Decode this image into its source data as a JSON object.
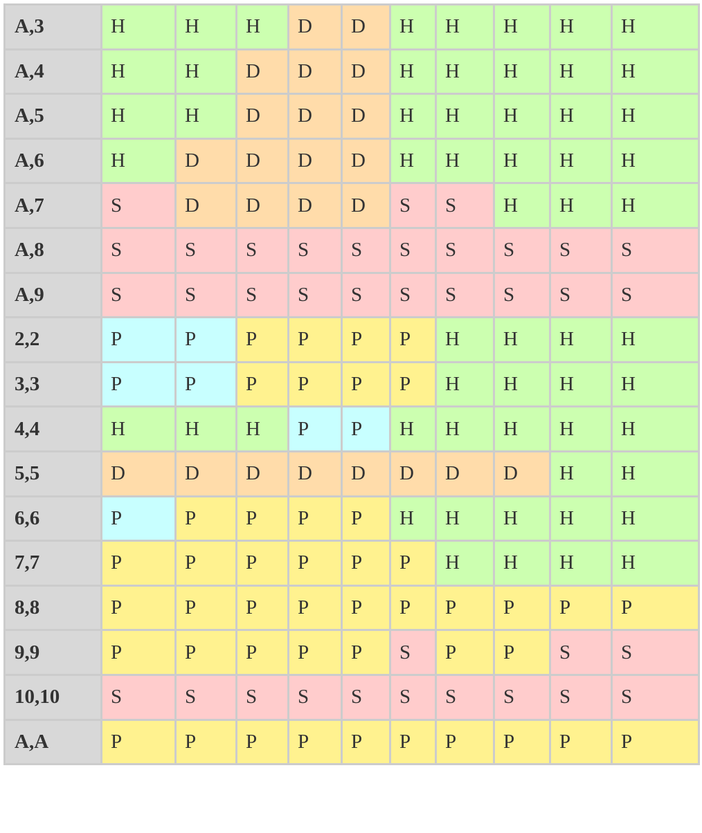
{
  "colors": {
    "H": "#ccffb0",
    "D": "#ffdcaa",
    "S": "#ffcccc",
    "P": "#fff28f",
    "Pc": "#c8ffff",
    "header": "#d8d8d8",
    "border": "#cccccc"
  },
  "rows": [
    {
      "label": "A,3",
      "cells": [
        "H",
        "H",
        "H",
        "D",
        "D",
        "H",
        "H",
        "H",
        "H",
        "H"
      ]
    },
    {
      "label": "A,4",
      "cells": [
        "H",
        "H",
        "D",
        "D",
        "D",
        "H",
        "H",
        "H",
        "H",
        "H"
      ]
    },
    {
      "label": "A,5",
      "cells": [
        "H",
        "H",
        "D",
        "D",
        "D",
        "H",
        "H",
        "H",
        "H",
        "H"
      ]
    },
    {
      "label": "A,6",
      "cells": [
        "H",
        "D",
        "D",
        "D",
        "D",
        "H",
        "H",
        "H",
        "H",
        "H"
      ]
    },
    {
      "label": "A,7",
      "cells": [
        "S",
        "D",
        "D",
        "D",
        "D",
        "S",
        "S",
        "H",
        "H",
        "H"
      ]
    },
    {
      "label": "A,8",
      "cells": [
        "S",
        "S",
        "S",
        "S",
        "S",
        "S",
        "S",
        "S",
        "S",
        "S"
      ]
    },
    {
      "label": "A,9",
      "cells": [
        "S",
        "S",
        "S",
        "S",
        "S",
        "S",
        "S",
        "S",
        "S",
        "S"
      ]
    },
    {
      "label": "2,2",
      "cells": [
        "Pc",
        "Pc",
        "P",
        "P",
        "P",
        "P",
        "H",
        "H",
        "H",
        "H"
      ]
    },
    {
      "label": "3,3",
      "cells": [
        "Pc",
        "Pc",
        "P",
        "P",
        "P",
        "P",
        "H",
        "H",
        "H",
        "H"
      ]
    },
    {
      "label": "4,4",
      "cells": [
        "H",
        "H",
        "H",
        "Pc",
        "Pc",
        "H",
        "H",
        "H",
        "H",
        "H"
      ]
    },
    {
      "label": "5,5",
      "cells": [
        "D",
        "D",
        "D",
        "D",
        "D",
        "D",
        "D",
        "D",
        "H",
        "H"
      ]
    },
    {
      "label": "6,6",
      "cells": [
        "Pc",
        "P",
        "P",
        "P",
        "P",
        "H",
        "H",
        "H",
        "H",
        "H"
      ]
    },
    {
      "label": "7,7",
      "cells": [
        "P",
        "P",
        "P",
        "P",
        "P",
        "P",
        "H",
        "H",
        "H",
        "H"
      ]
    },
    {
      "label": "8,8",
      "cells": [
        "P",
        "P",
        "P",
        "P",
        "P",
        "P",
        "P",
        "P",
        "P",
        "P"
      ]
    },
    {
      "label": "9,9",
      "cells": [
        "P",
        "P",
        "P",
        "P",
        "P",
        "S",
        "P",
        "P",
        "S",
        "S"
      ]
    },
    {
      "label": "10,10",
      "cells": [
        "S",
        "S",
        "S",
        "S",
        "S",
        "S",
        "S",
        "S",
        "S",
        "S"
      ]
    },
    {
      "label": "A,A",
      "cells": [
        "P",
        "P",
        "P",
        "P",
        "P",
        "P",
        "P",
        "P",
        "P",
        "P"
      ]
    }
  ]
}
